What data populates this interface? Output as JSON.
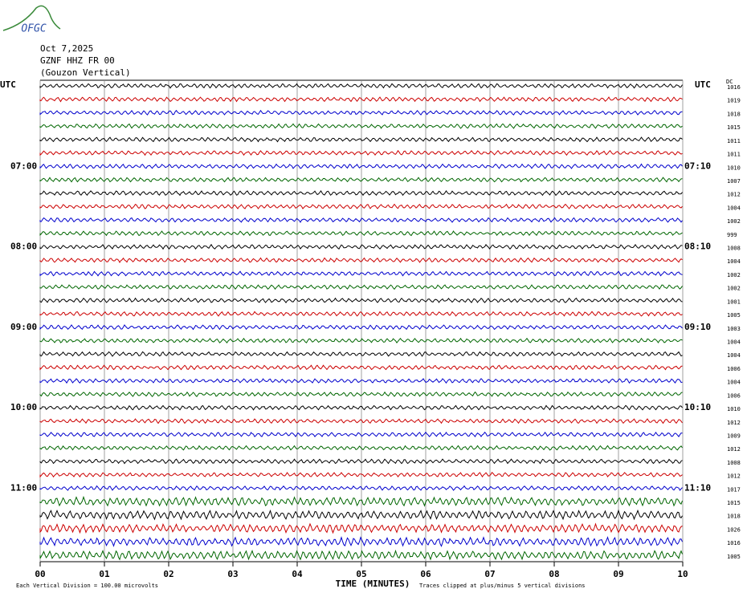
{
  "header": {
    "logo": "OFGC",
    "date": "Oct 7,2025",
    "station": "GZNF HHZ FR 00",
    "location": "(Gouzon Vertical)",
    "left_axis_label": "UTC",
    "right_axis_label": "UTC",
    "dc_label": "DC"
  },
  "rows": [
    {
      "color": "#000000",
      "dc": 1016
    },
    {
      "color": "#cc0000",
      "dc": 1019
    },
    {
      "color": "#0000cc",
      "dc": 1018
    },
    {
      "color": "#006600",
      "dc": 1015
    },
    {
      "color": "#000000",
      "dc": 1011
    },
    {
      "color": "#cc0000",
      "dc": 1011
    },
    {
      "color": "#0000cc",
      "dc": 1010,
      "left_label": "07:00",
      "right_label": "07:10"
    },
    {
      "color": "#006600",
      "dc": 1007
    },
    {
      "color": "#000000",
      "dc": 1012
    },
    {
      "color": "#cc0000",
      "dc": 1004
    },
    {
      "color": "#0000cc",
      "dc": 1002
    },
    {
      "color": "#006600",
      "dc": 999
    },
    {
      "color": "#000000",
      "dc": 1008,
      "left_label": "08:00",
      "right_label": "08:10"
    },
    {
      "color": "#cc0000",
      "dc": 1004
    },
    {
      "color": "#0000cc",
      "dc": 1002
    },
    {
      "color": "#006600",
      "dc": 1002
    },
    {
      "color": "#000000",
      "dc": 1001
    },
    {
      "color": "#cc0000",
      "dc": 1005
    },
    {
      "color": "#0000cc",
      "dc": 1003,
      "left_label": "09:00",
      "right_label": "09:10"
    },
    {
      "color": "#006600",
      "dc": 1004
    },
    {
      "color": "#000000",
      "dc": 1004
    },
    {
      "color": "#cc0000",
      "dc": 1006
    },
    {
      "color": "#0000cc",
      "dc": 1004
    },
    {
      "color": "#006600",
      "dc": 1006
    },
    {
      "color": "#000000",
      "dc": 1010,
      "left_label": "10:00",
      "right_label": "10:10"
    },
    {
      "color": "#cc0000",
      "dc": 1012
    },
    {
      "color": "#0000cc",
      "dc": 1009
    },
    {
      "color": "#006600",
      "dc": 1012
    },
    {
      "color": "#000000",
      "dc": 1008
    },
    {
      "color": "#cc0000",
      "dc": 1012
    },
    {
      "color": "#0000cc",
      "dc": 1017,
      "left_label": "11:00",
      "right_label": "11:10"
    },
    {
      "color": "#006600",
      "dc": 1015
    },
    {
      "color": "#000000",
      "dc": 1018
    },
    {
      "color": "#cc0000",
      "dc": 1026
    },
    {
      "color": "#0000cc",
      "dc": 1016
    },
    {
      "color": "#006600",
      "dc": 1005
    }
  ],
  "x_axis": {
    "ticks": [
      "00",
      "01",
      "02",
      "03",
      "04",
      "05",
      "06",
      "07",
      "08",
      "09",
      "10"
    ],
    "label": "TIME (MINUTES)"
  },
  "footer": {
    "scale": "Each Vertical Division =  100.00 microvolts",
    "clip": "Traces clipped at plus/minus 5 vertical divisions"
  }
}
